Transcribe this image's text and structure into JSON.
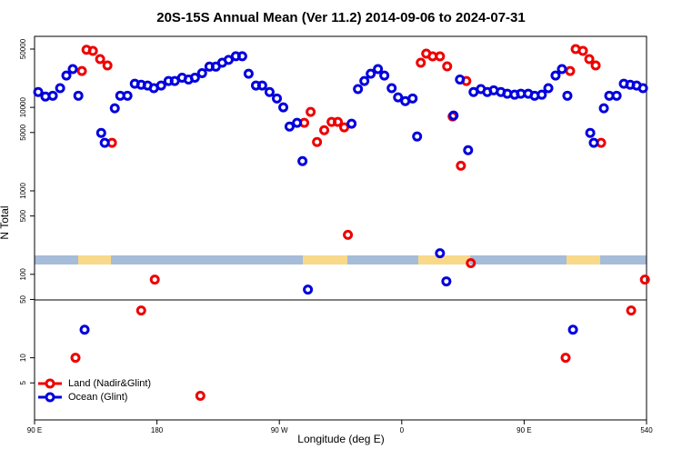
{
  "chart_data": {
    "type": "scatter",
    "title": "20S-15S Annual Mean (Ver 11.2)   2014-09-06 to 2024-07-31",
    "x_label": "Longitude (deg E)",
    "y_label": "N Total",
    "log_y": true,
    "legend": "bottom-left",
    "xlim": [
      90,
      540
    ],
    "xticks": [
      {
        "value": 90,
        "label": "90 E"
      },
      180,
      {
        "value": 270,
        "label": "90 W"
      },
      {
        "value": 360,
        "label": "0"
      },
      {
        "value": 450,
        "label": "90 E"
      },
      540
    ],
    "ylim": [
      1.8,
      71000
    ],
    "yticks": [
      5,
      10,
      50,
      100,
      500,
      1000,
      5000,
      10000,
      50000
    ],
    "series": [
      {
        "name": "Land (Nadir&Glint)",
        "color": "#ee0000",
        "x": [
          120.1,
          124.8,
          128.2,
          132.9,
          138.2,
          143.6,
          146.9,
          168.4,
          178.4,
          211.9,
          288.3,
          293,
          297.7,
          303,
          308.4,
          313,
          317.7,
          320.4,
          374,
          378,
          382.7,
          388.1,
          393.4,
          397.4,
          403.5,
          407.5,
          410.8,
          480.5,
          483.8,
          487.9,
          493.2,
          497.9,
          502.6,
          506.6,
          528.7,
          538.8
        ],
        "values": [
          10,
          27300,
          49000,
          47500,
          37900,
          31800,
          3760,
          36.8,
          86.5,
          3.5,
          6530,
          8830,
          3850,
          5330,
          6700,
          6700,
          5760,
          297,
          34300,
          44100,
          40900,
          40900,
          31000,
          7780,
          2000,
          20700,
          136,
          10,
          27300,
          50000,
          47600,
          37900,
          31800,
          3760,
          36.8,
          86.5
        ]
      },
      {
        "name": "Ocean (Glint)",
        "color": "#0000dd",
        "x": [
          92.7,
          98,
          103.4,
          108.8,
          113.4,
          118.1,
          122.2,
          126.8,
          139,
          141.6,
          149,
          153,
          158.3,
          163.7,
          168.4,
          173.1,
          177.7,
          183.1,
          188.5,
          193.1,
          198.5,
          203.2,
          207.9,
          213.2,
          218.6,
          223.3,
          228,
          232.7,
          238,
          242.7,
          247.4,
          252.8,
          257.4,
          262.8,
          268.2,
          272.9,
          277.5,
          283,
          287,
          291,
          323.1,
          327.8,
          332.5,
          337.2,
          342.5,
          347.2,
          352.6,
          357.3,
          362.6,
          368,
          371.3,
          388.1,
          392.8,
          398.1,
          402.8,
          408.8,
          412.8,
          418.2,
          422.9,
          427.6,
          432.9,
          437.6,
          443,
          447.6,
          453,
          457.7,
          463,
          467.8,
          473.1,
          477.8,
          481.8,
          485.9,
          498.6,
          501.2,
          508.6,
          512.6,
          518,
          523.3,
          528,
          532.7,
          537.4
        ],
        "values": [
          15300,
          13500,
          13800,
          17000,
          24100,
          28800,
          13800,
          21.7,
          4950,
          3760,
          9750,
          13800,
          13800,
          19200,
          18700,
          18300,
          17000,
          18300,
          20700,
          20700,
          22700,
          21600,
          22700,
          25700,
          30800,
          30800,
          34300,
          37100,
          41000,
          41000,
          25300,
          18300,
          18300,
          15300,
          12800,
          10000,
          5900,
          6530,
          2270,
          65.6,
          6370,
          16600,
          20700,
          25300,
          28800,
          24100,
          17000,
          13200,
          11900,
          12800,
          4480,
          179,
          82.3,
          7980,
          21600,
          3070,
          15300,
          16600,
          15300,
          16000,
          15300,
          14600,
          14200,
          14600,
          14600,
          13800,
          14200,
          17000,
          24100,
          28800,
          13800,
          21.7,
          4950,
          3760,
          9750,
          13800,
          13800,
          19200,
          18700,
          18300,
          17000
        ]
      }
    ]
  }
}
